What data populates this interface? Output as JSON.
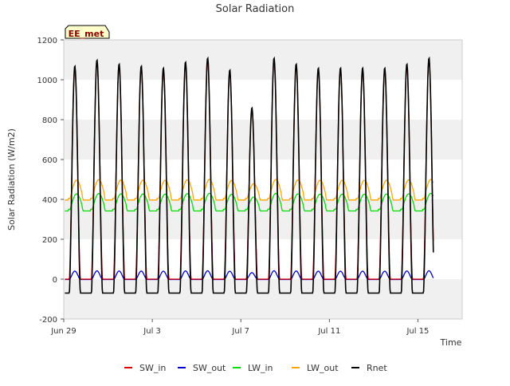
{
  "chart_data": {
    "type": "line",
    "title": "Solar Radiation",
    "xlabel": "Time",
    "ylabel": "Solar Radiation (W/m2)",
    "ylim": [
      -200,
      1200
    ],
    "yticks": [
      -200,
      0,
      200,
      400,
      600,
      800,
      1000,
      1200
    ],
    "xlim": [
      0,
      18
    ],
    "xticks": [
      {
        "x": 0,
        "label": "Jun 29"
      },
      {
        "x": 4,
        "label": "Jul 3"
      },
      {
        "x": 8,
        "label": "Jul 7"
      },
      {
        "x": 12,
        "label": "Jul 11"
      },
      {
        "x": 16,
        "label": "Jul 15"
      }
    ],
    "badge": "EE_met",
    "grid": "horizontal bands",
    "legend_position": "bottom",
    "day_count": 17,
    "daily_peaks": [
      1060,
      1090,
      1070,
      1060,
      1050,
      1080,
      1100,
      1040,
      850,
      1100,
      1070,
      1050,
      1050,
      1050,
      1050,
      1070,
      1100
    ],
    "series": [
      {
        "name": "SW_in",
        "color": "#dd0000",
        "night": 0,
        "day_min": 0
      },
      {
        "name": "SW_out",
        "color": "#0000cc",
        "night": -2,
        "day_min": 0,
        "day_max": 40
      },
      {
        "name": "LW_in",
        "color": "#00dd00",
        "night": 350,
        "day_min": 340,
        "day_max": 430
      },
      {
        "name": "LW_out",
        "color": "#ffa500",
        "night": 405,
        "day_min": 395,
        "day_max": 500
      },
      {
        "name": "Rnet",
        "color": "#000000",
        "night": -70,
        "day_min": -80
      }
    ]
  }
}
